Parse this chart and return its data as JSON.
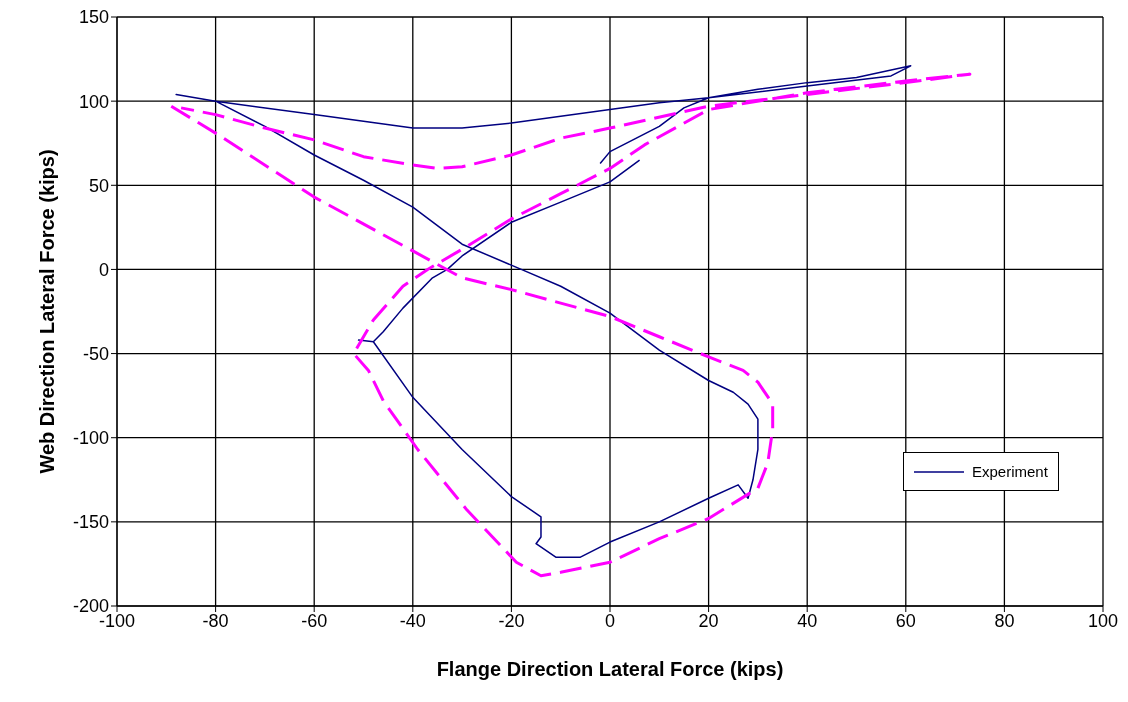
{
  "chart_data": {
    "type": "line",
    "xlabel": "Flange Direction Lateral Force (kips)",
    "ylabel": "Web Direction Lateral Force (kips)",
    "xlim": [
      -100,
      100
    ],
    "xticks": [
      -100,
      -80,
      -60,
      -40,
      -20,
      0,
      20,
      40,
      60,
      80,
      100
    ],
    "ylim": [
      -200,
      150
    ],
    "yticks": [
      -200,
      -150,
      -100,
      -50,
      0,
      50,
      100,
      150
    ],
    "grid": true,
    "legend": "bottom right",
    "marker": "none",
    "series": [
      {
        "name": "Experiment",
        "color": "#000080",
        "line_style": "solid",
        "x": [
          6,
          0,
          -10,
          -20,
          -30,
          -33,
          -36,
          -42,
          -46,
          -48,
          -51,
          -48,
          -40,
          -30,
          -20,
          -14,
          -14,
          -15,
          -11,
          -6,
          0,
          10,
          20,
          26,
          28,
          29,
          30,
          30,
          28,
          25,
          20,
          10,
          0,
          -10,
          -18,
          -30,
          -40,
          -50,
          -60,
          -70,
          -80,
          -88,
          -80,
          -60,
          -40,
          -30,
          -20,
          -10,
          0,
          10,
          20,
          30,
          40,
          50,
          61,
          57,
          40,
          20,
          15,
          10,
          0,
          -2
        ],
        "values": [
          65,
          52,
          40,
          28,
          8,
          0,
          -5,
          -23,
          -37,
          -43,
          -42,
          -43,
          -76,
          -107,
          -135,
          -147,
          -159,
          -163,
          -171,
          -171,
          -162,
          -150,
          -136,
          -128,
          -136,
          -125,
          -107,
          -89,
          -80,
          -73,
          -66,
          -48,
          -26,
          -10,
          0,
          15,
          37,
          53,
          68,
          85,
          100,
          104,
          100,
          92,
          84,
          84,
          87,
          91,
          95,
          99,
          102,
          107,
          111,
          114,
          121,
          115,
          109,
          102,
          96,
          85,
          70,
          63
        ]
      },
      {
        "color": "#ff00ff",
        "line_style": "dashed",
        "x": [
          -89,
          -80,
          -60,
          -40,
          -30,
          -20,
          -10,
          0,
          10,
          20,
          27,
          30,
          33,
          33,
          32,
          30,
          20,
          10,
          0,
          -10,
          -14,
          -19,
          -29,
          -39,
          -46,
          -49,
          -52,
          -48,
          -45,
          -42,
          -37,
          -30,
          -20,
          -10,
          0,
          7,
          20,
          40,
          60,
          73,
          60,
          40,
          20,
          0,
          -10,
          -20,
          -30,
          -35,
          -40,
          -50,
          -60,
          -70,
          -80,
          -87
        ],
        "values": [
          97,
          81,
          43,
          11,
          -5,
          -12,
          -20,
          -28,
          -40,
          -52,
          -60,
          -67,
          -80,
          -95,
          -115,
          -130,
          -148,
          -160,
          -174,
          -180,
          -182,
          -174,
          -143,
          -107,
          -78,
          -60,
          -50,
          -30,
          -20,
          -10,
          0,
          12,
          30,
          45,
          60,
          74,
          95,
          105,
          112,
          116,
          111,
          104,
          97,
          84,
          78,
          68,
          61,
          60,
          62,
          67,
          77,
          84,
          92,
          96
        ]
      }
    ]
  }
}
